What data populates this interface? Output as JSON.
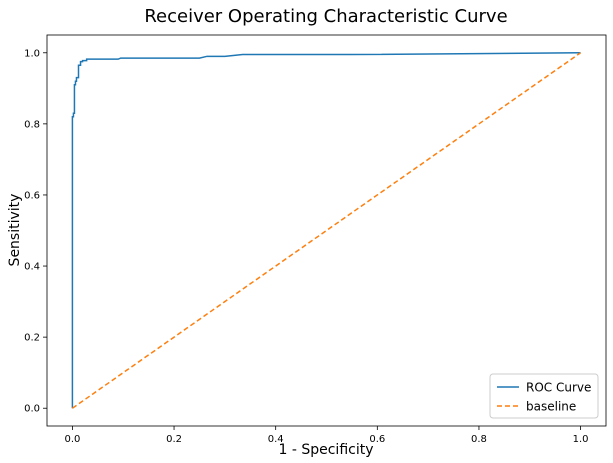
{
  "chart_data": {
    "type": "line",
    "title": "Receiver Operating Characteristic Curve",
    "xlabel": "1 - Specificity",
    "ylabel": "Sensitivity",
    "xlim": [
      -0.05,
      1.05
    ],
    "ylim": [
      -0.05,
      1.05
    ],
    "xticks": [
      "0.0",
      "0.2",
      "0.4",
      "0.6",
      "0.8",
      "1.0"
    ],
    "yticks": [
      "0.0",
      "0.2",
      "0.4",
      "0.6",
      "0.8",
      "1.0"
    ],
    "grid": false,
    "legend_position": "lower-right",
    "series": [
      {
        "name": "ROC Curve",
        "color": "#1f77b4",
        "style": "solid",
        "x": [
          0.0,
          0.0,
          0.002,
          0.002,
          0.004,
          0.004,
          0.006,
          0.006,
          0.008,
          0.008,
          0.012,
          0.012,
          0.016,
          0.016,
          0.02,
          0.02,
          0.028,
          0.028,
          0.09,
          0.095,
          0.25,
          0.265,
          0.3,
          0.335,
          0.55,
          1.0
        ],
        "y": [
          0.0,
          0.82,
          0.82,
          0.83,
          0.83,
          0.91,
          0.91,
          0.92,
          0.92,
          0.93,
          0.93,
          0.965,
          0.965,
          0.975,
          0.975,
          0.978,
          0.978,
          0.982,
          0.982,
          0.985,
          0.985,
          0.99,
          0.99,
          0.995,
          0.995,
          1.0
        ]
      },
      {
        "name": "baseline",
        "color": "#ff7f0e",
        "style": "dashed",
        "x": [
          0.0,
          1.0
        ],
        "y": [
          0.0,
          1.0
        ]
      }
    ]
  }
}
